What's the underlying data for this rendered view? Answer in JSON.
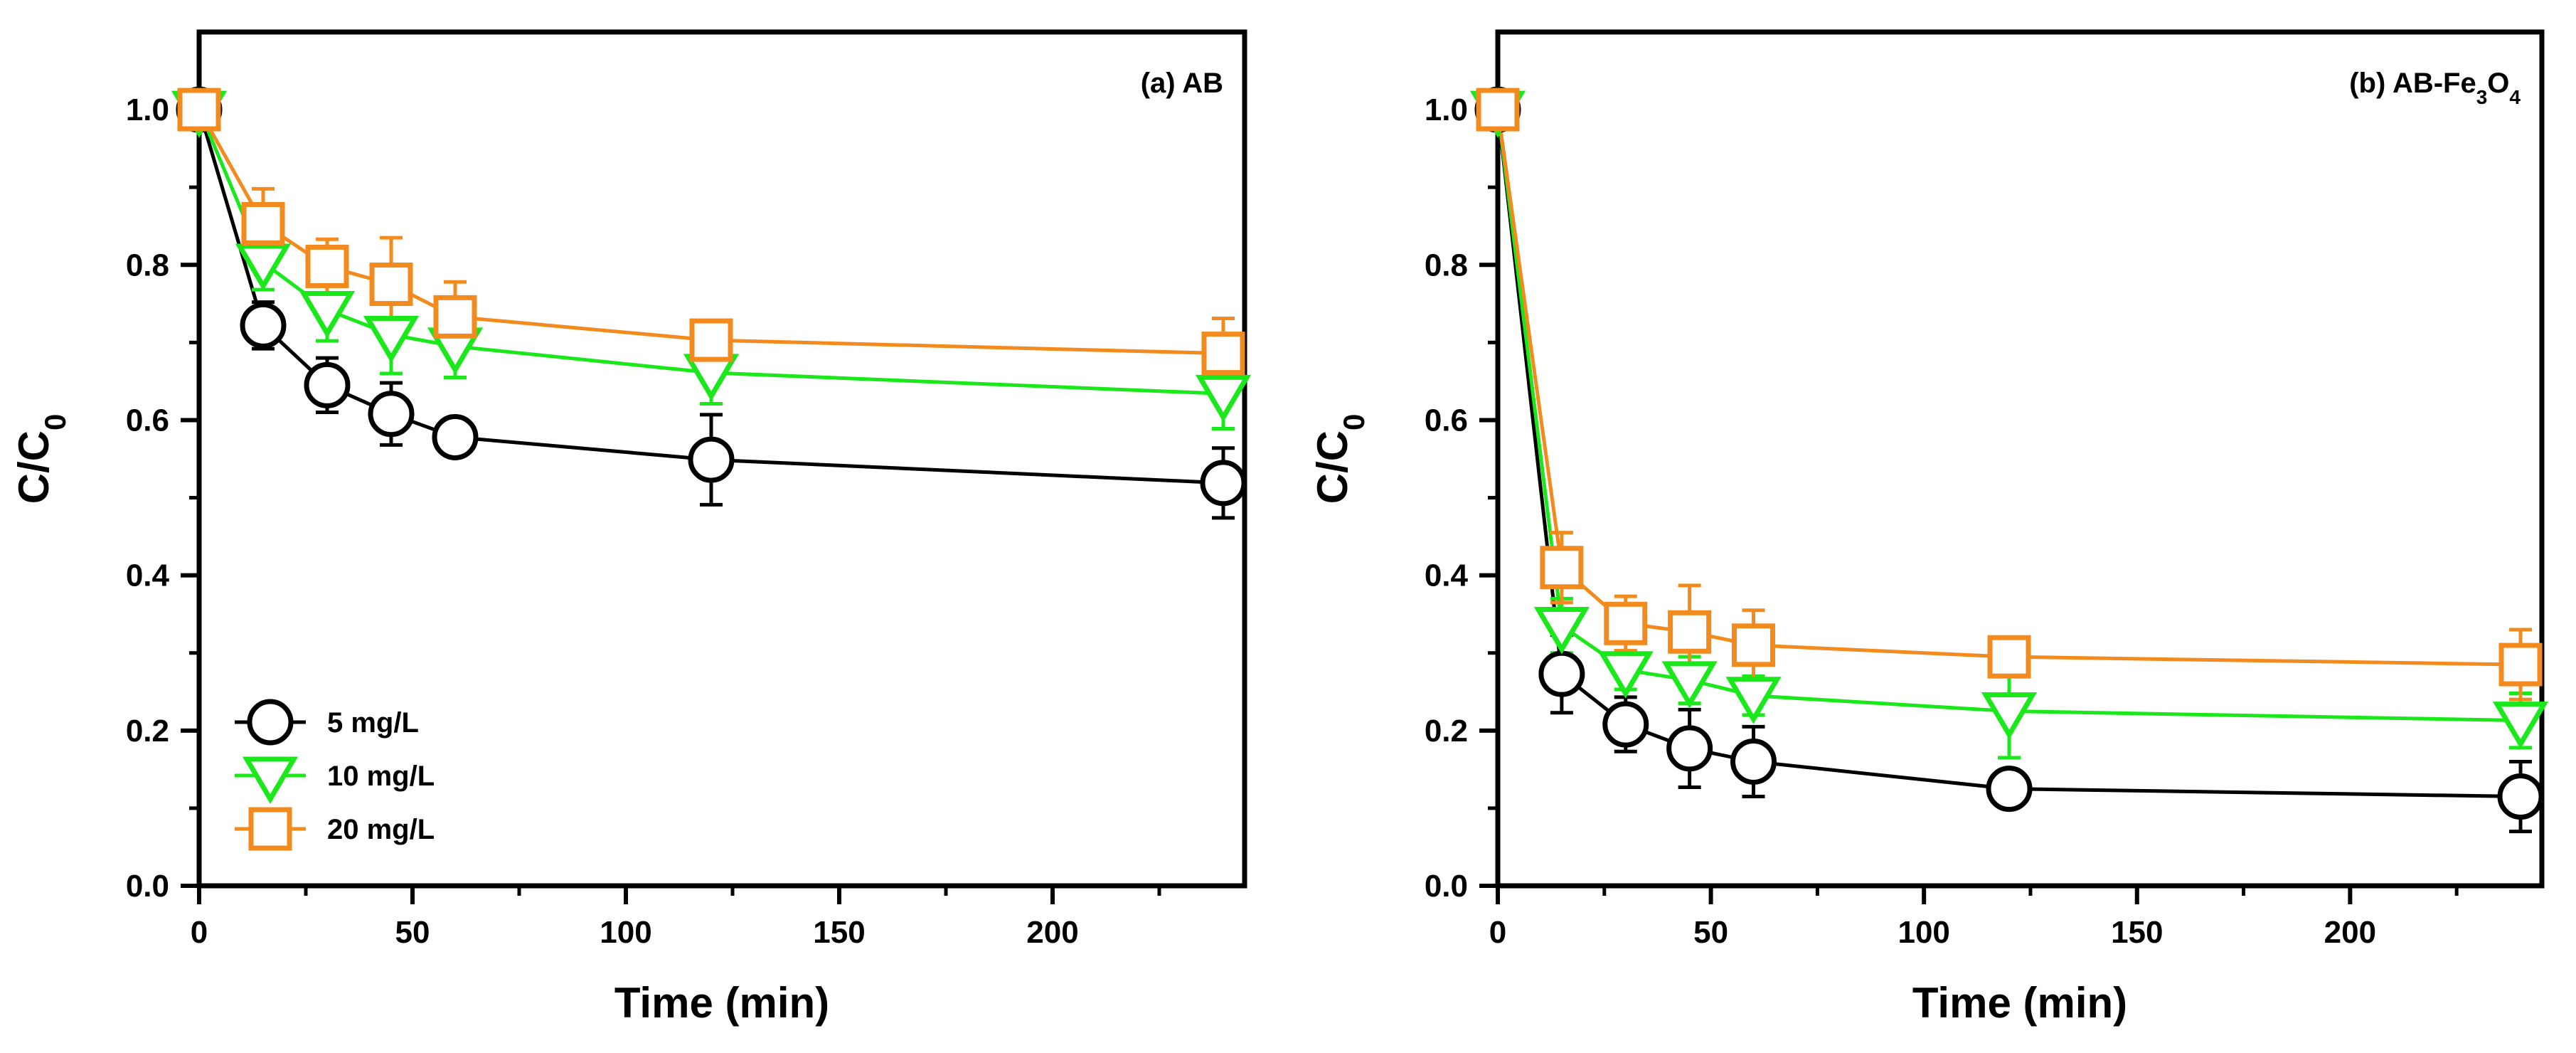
{
  "chart_data": [
    {
      "type": "line",
      "title": "(a) AB",
      "title_parts": [
        {
          "t": "(a) AB",
          "sub": false
        }
      ],
      "xlabel": "Time (min)",
      "ylabel_parts": [
        {
          "t": "C/C",
          "sub": false
        },
        {
          "t": "0",
          "sub": true
        }
      ],
      "xlim": [
        0,
        245
      ],
      "ylim": [
        0,
        1.1
      ],
      "x_ticks": [
        0,
        50,
        100,
        150,
        200
      ],
      "x_tick_labels": [
        "0",
        "50",
        "100",
        "150",
        "200"
      ],
      "y_ticks": [
        0,
        0.2,
        0.4,
        0.6,
        0.8,
        1.0
      ],
      "y_tick_labels": [
        "0.0",
        "0.2",
        "0.4",
        "0.6",
        "0.8",
        "1.0"
      ],
      "legend": "bottom-left",
      "x": [
        0,
        15,
        30,
        45,
        60,
        120,
        240
      ],
      "series": [
        {
          "name": "5 mg/L",
          "marker": "circle",
          "color": "#000000",
          "values": [
            1.0,
            0.722,
            0.645,
            0.608,
            0.578,
            0.549,
            0.519
          ],
          "errors": [
            0,
            0.03,
            0.035,
            0.04,
            0,
            0.058,
            0.045
          ]
        },
        {
          "name": "10 mg/L",
          "marker": "triangle-down",
          "color": "#1AE81A",
          "values": [
            1.0,
            0.803,
            0.742,
            0.71,
            0.695,
            0.661,
            0.634
          ],
          "errors": [
            0,
            0.035,
            0.04,
            0.05,
            0.04,
            0.04,
            0.045
          ]
        },
        {
          "name": "20 mg/L",
          "marker": "square",
          "color": "#F28A1E",
          "values": [
            1.0,
            0.853,
            0.798,
            0.775,
            0.733,
            0.703,
            0.686
          ],
          "errors": [
            0,
            0.045,
            0.035,
            0.06,
            0.045,
            0.025,
            0.045
          ]
        }
      ]
    },
    {
      "type": "line",
      "title": "(b) AB-Fe3O4",
      "title_parts": [
        {
          "t": "(b) AB-Fe",
          "sub": false
        },
        {
          "t": "3",
          "sub": true
        },
        {
          "t": "O",
          "sub": false
        },
        {
          "t": "4",
          "sub": true
        }
      ],
      "xlabel": "Time (min)",
      "ylabel_parts": [
        {
          "t": "C/C",
          "sub": false
        },
        {
          "t": "0",
          "sub": true
        }
      ],
      "xlim": [
        0,
        245
      ],
      "ylim": [
        0,
        1.1
      ],
      "x_ticks": [
        0,
        50,
        100,
        150,
        200
      ],
      "x_tick_labels": [
        "0",
        "50",
        "100",
        "150",
        "200"
      ],
      "y_ticks": [
        0,
        0.2,
        0.4,
        0.6,
        0.8,
        1.0
      ],
      "y_tick_labels": [
        "0.0",
        "0.2",
        "0.4",
        "0.6",
        "0.8",
        "1.0"
      ],
      "x": [
        0,
        15,
        30,
        45,
        60,
        120,
        240
      ],
      "series": [
        {
          "name": "5 mg/L",
          "marker": "circle",
          "color": "#000000",
          "values": [
            1.0,
            0.273,
            0.208,
            0.177,
            0.16,
            0.125,
            0.115
          ],
          "errors": [
            0,
            0.05,
            0.035,
            0.05,
            0.045,
            0.02,
            0.045
          ]
        },
        {
          "name": "10 mg/L",
          "marker": "triangle-down",
          "color": "#1AE81A",
          "values": [
            1.0,
            0.335,
            0.278,
            0.265,
            0.245,
            0.225,
            0.213
          ],
          "errors": [
            0,
            0.035,
            0.025,
            0.03,
            0.025,
            0.06,
            0.035
          ]
        },
        {
          "name": "20 mg/L",
          "marker": "square",
          "color": "#F28A1E",
          "values": [
            1.0,
            0.41,
            0.338,
            0.327,
            0.31,
            0.295,
            0.285
          ],
          "errors": [
            0,
            0.045,
            0.035,
            0.06,
            0.045,
            0.02,
            0.045
          ]
        }
      ]
    }
  ]
}
